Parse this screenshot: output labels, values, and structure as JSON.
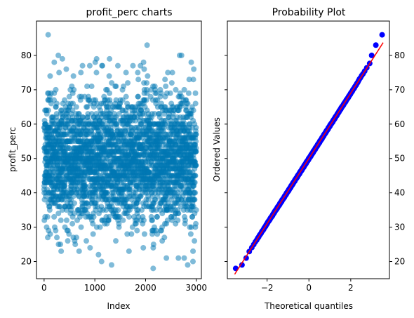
{
  "chart_data": [
    {
      "type": "scatter",
      "title": "profit_perc charts",
      "xlabel": "Index",
      "ylabel": "profit_perc",
      "xlim": [
        -150,
        3100
      ],
      "ylim": [
        15,
        90
      ],
      "xticks": [
        0,
        1000,
        2000,
        3000
      ],
      "yticks": [
        20,
        30,
        40,
        50,
        60,
        70,
        80
      ],
      "n_points": 3000,
      "index_range": [
        0,
        2999
      ],
      "value_mean": 50,
      "value_std": 9.5,
      "value_range": [
        18,
        86
      ],
      "marker_color": "#0077b3",
      "marker_alpha": 0.5,
      "outliers": [
        {
          "x": 80,
          "y": 86
        },
        {
          "x": 2030,
          "y": 83
        },
        {
          "x": 2150,
          "y": 18
        },
        {
          "x": 1330,
          "y": 19
        },
        {
          "x": 2830,
          "y": 19
        },
        {
          "x": 1140,
          "y": 77
        },
        {
          "x": 2410,
          "y": 21
        },
        {
          "x": 690,
          "y": 23
        },
        {
          "x": 1290,
          "y": 79
        },
        {
          "x": 360,
          "y": 79
        },
        {
          "x": 2900,
          "y": 78
        },
        {
          "x": 900,
          "y": 77
        },
        {
          "x": 200,
          "y": 78
        },
        {
          "x": 1900,
          "y": 77
        }
      ]
    },
    {
      "type": "scatter",
      "title": "Probability Plot",
      "xlabel": "Theoretical quantiles",
      "ylabel": "Ordered Values",
      "xlim": [
        -3.9,
        3.85
      ],
      "ylim": [
        15,
        90
      ],
      "xticks": [
        -2,
        0,
        2
      ],
      "xtick_labels": [
        "−2",
        "0",
        "2"
      ],
      "yticks": [
        20,
        30,
        40,
        50,
        60,
        70,
        80
      ],
      "y_axis_side": "right",
      "fit_line": {
        "slope": 9.5,
        "intercept": 50,
        "color": "#ff0000",
        "x_range": [
          -3.55,
          3.55
        ]
      },
      "marker_color": "#0000ff",
      "n_points": 3000,
      "extremes": [
        {
          "x": -3.5,
          "y": 18
        },
        {
          "x": -3.2,
          "y": 19
        },
        {
          "x": -3.0,
          "y": 21
        },
        {
          "x": 3.0,
          "y": 80
        },
        {
          "x": 3.2,
          "y": 83
        },
        {
          "x": 3.5,
          "y": 86
        }
      ]
    }
  ]
}
